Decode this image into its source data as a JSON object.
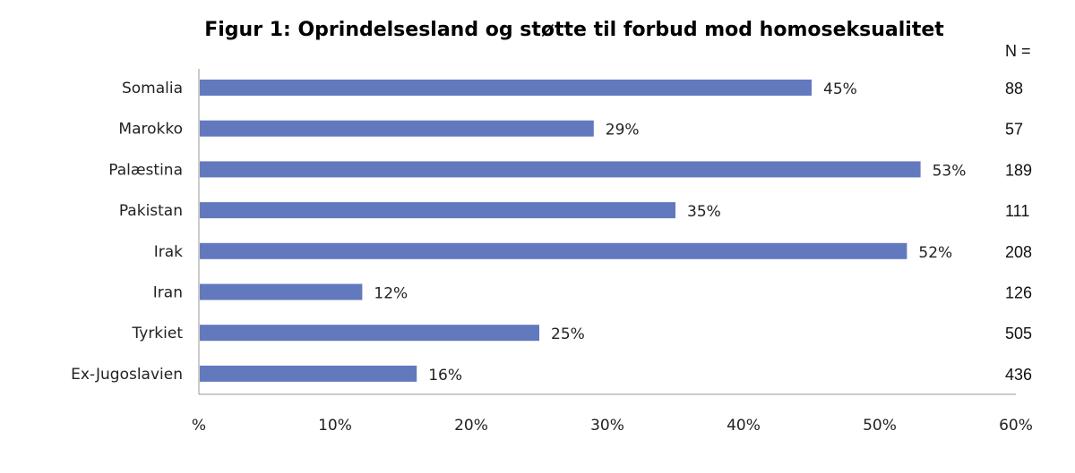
{
  "chart_data": {
    "type": "bar",
    "orientation": "horizontal",
    "title": "Figur 1: Oprindelsesland og støtte til forbud mod homoseksualitet",
    "categories": [
      "Somalia",
      "Marokko",
      "Palæstina",
      "Pakistan",
      "Irak",
      "Iran",
      "Tyrkiet",
      "Ex-Jugoslavien"
    ],
    "values": [
      45,
      29,
      53,
      35,
      52,
      12,
      25,
      16
    ],
    "value_labels": [
      "45%",
      "29%",
      "53%",
      "35%",
      "52%",
      "12%",
      "25%",
      "16%"
    ],
    "n_header": "N =",
    "n_values": [
      "88",
      "57",
      "189",
      "111",
      "208",
      "126",
      "505",
      "436"
    ],
    "xlim": [
      0,
      60
    ],
    "xticks": [
      0,
      10,
      20,
      30,
      40,
      50,
      60
    ],
    "xtick_labels": [
      "%",
      "10%",
      "20%",
      "30%",
      "40%",
      "50%",
      "60%"
    ],
    "bar_color": "#6279be",
    "axis_color": "#999999",
    "grid": false
  }
}
